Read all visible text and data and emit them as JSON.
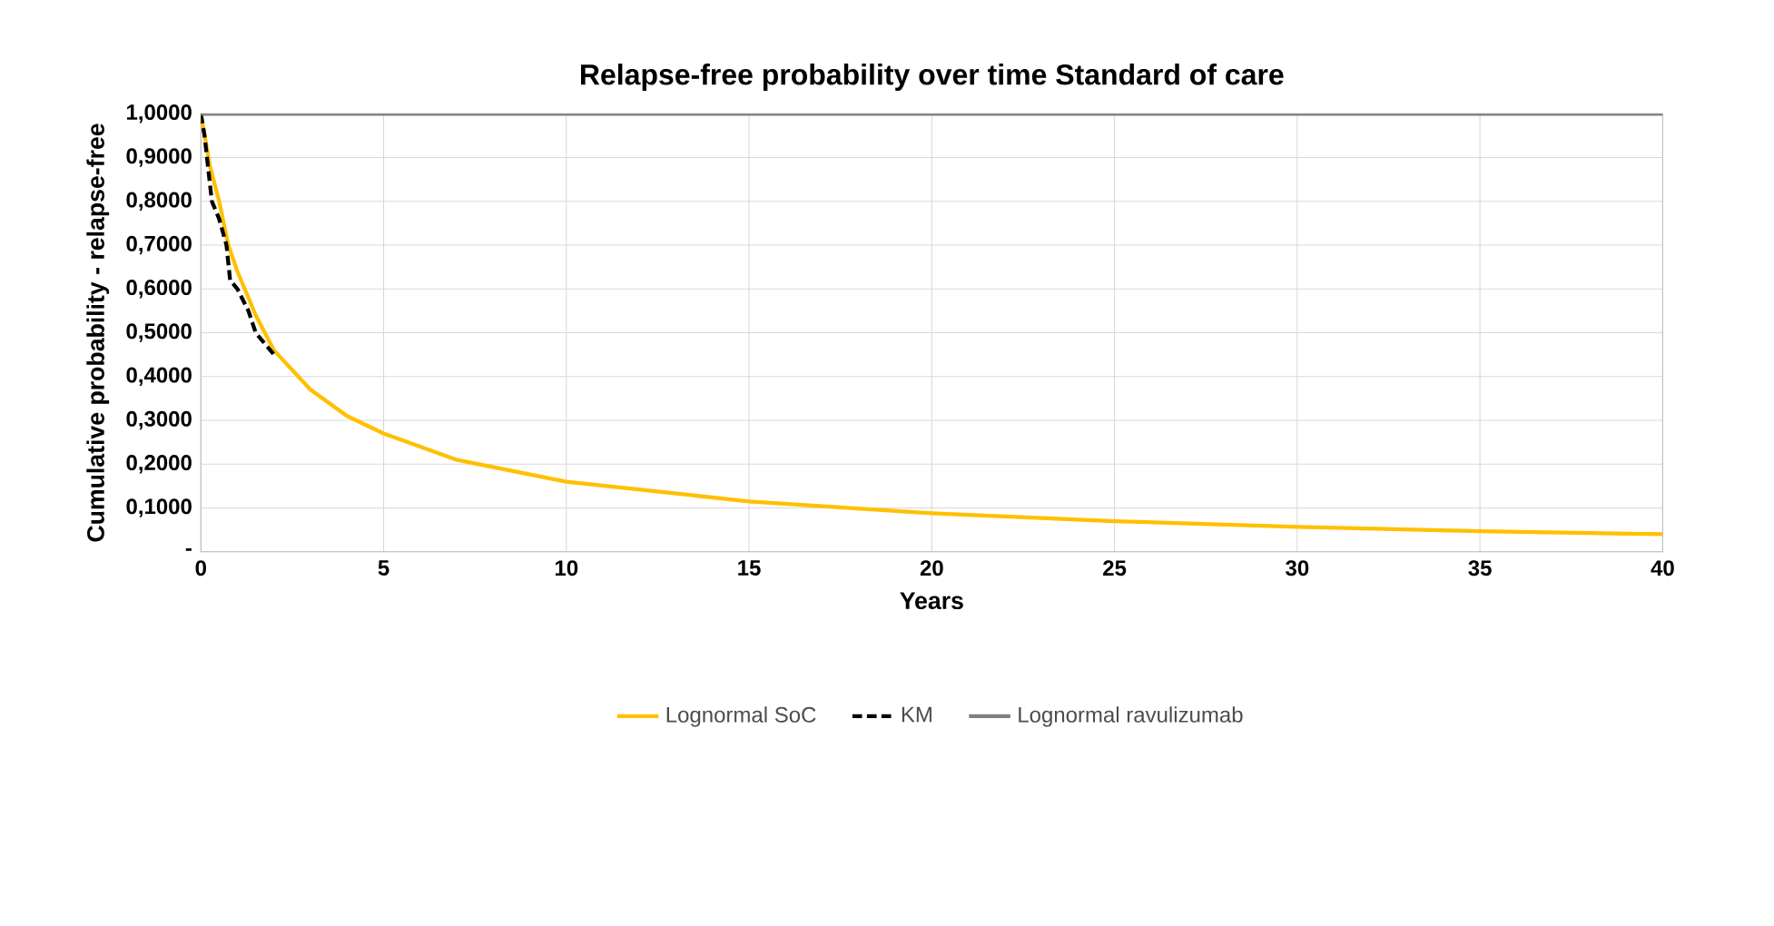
{
  "chart_data": {
    "type": "line",
    "title": "Relapse-free probability over time Standard of care",
    "xlabel": "Years",
    "ylabel": "Cumulative probability - relapse-free",
    "xlim": [
      0,
      40
    ],
    "xticks": [
      0,
      5,
      10,
      15,
      20,
      25,
      30,
      35,
      40
    ],
    "ylim": [
      0,
      1
    ],
    "yticks": [
      {
        "value": 0,
        "label": "-"
      },
      {
        "value": 0.1,
        "label": "0,1000"
      },
      {
        "value": 0.2,
        "label": "0,2000"
      },
      {
        "value": 0.3,
        "label": "0,3000"
      },
      {
        "value": 0.4,
        "label": "0,4000"
      },
      {
        "value": 0.5,
        "label": "0,5000"
      },
      {
        "value": 0.6,
        "label": "0,6000"
      },
      {
        "value": 0.7,
        "label": "0,7000"
      },
      {
        "value": 0.8,
        "label": "0,8000"
      },
      {
        "value": 0.9,
        "label": "0,9000"
      },
      {
        "value": 1,
        "label": "1,0000"
      }
    ],
    "grid": true,
    "legend": "bottom",
    "marker": "none",
    "series": [
      {
        "name": "Lognormal SoC",
        "color": "#ffc000",
        "line_style": "solid",
        "x": [
          0,
          0.25,
          0.5,
          0.75,
          1,
          1.5,
          2,
          3,
          4,
          5,
          7,
          10,
          15,
          20,
          25,
          30,
          35,
          40
        ],
        "values": [
          1,
          0.88,
          0.8,
          0.7,
          0.64,
          0.54,
          0.46,
          0.37,
          0.31,
          0.27,
          0.21,
          0.16,
          0.115,
          0.088,
          0.07,
          0.057,
          0.047,
          0.04
        ]
      },
      {
        "name": "KM",
        "color": "#000000",
        "line_style": "dashed",
        "x": [
          0,
          0.1,
          0.3,
          0.5,
          0.7,
          0.8,
          1.0,
          1.3,
          1.5,
          2.0
        ],
        "values": [
          1,
          0.95,
          0.8,
          0.76,
          0.7,
          0.62,
          0.6,
          0.55,
          0.5,
          0.45
        ]
      },
      {
        "name": "Lognormal ravulizumab",
        "color": "#7f7f7f",
        "line_style": "solid",
        "x": [
          0,
          40
        ],
        "values": [
          1,
          1
        ]
      }
    ]
  }
}
